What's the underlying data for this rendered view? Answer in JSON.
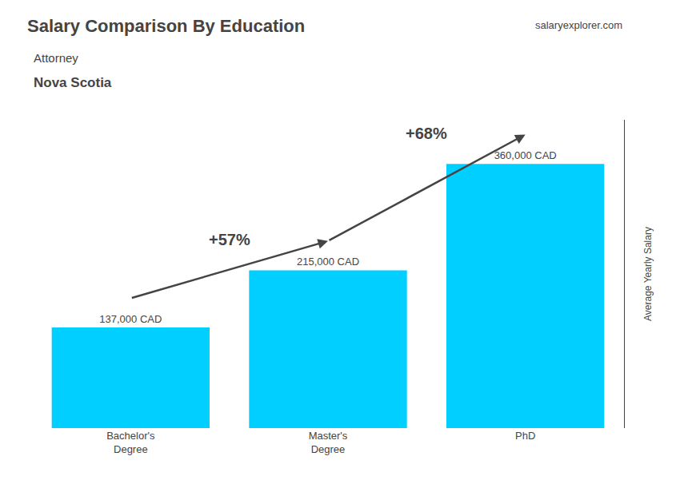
{
  "chart_data": {
    "type": "bar",
    "title": "Salary Comparison By Education",
    "subtitle": [
      "Attorney",
      "Nova Scotia"
    ],
    "ylabel": "Average Yearly Salary",
    "categories": [
      "Bachelor's\nDegree",
      "Master's\nDegree",
      "PhD"
    ],
    "values": [
      137000,
      215000,
      360000
    ],
    "value_labels": [
      "137,000 CAD",
      "215,000 CAD",
      "360,000 CAD"
    ],
    "data_labels": true,
    "color": "#00CFFF",
    "ylim": [
      0,
      420000
    ],
    "tick_labels": "x",
    "grid": false,
    "annotations": [
      "+57%",
      "+68%",
      "salaryexplorer.com"
    ]
  }
}
